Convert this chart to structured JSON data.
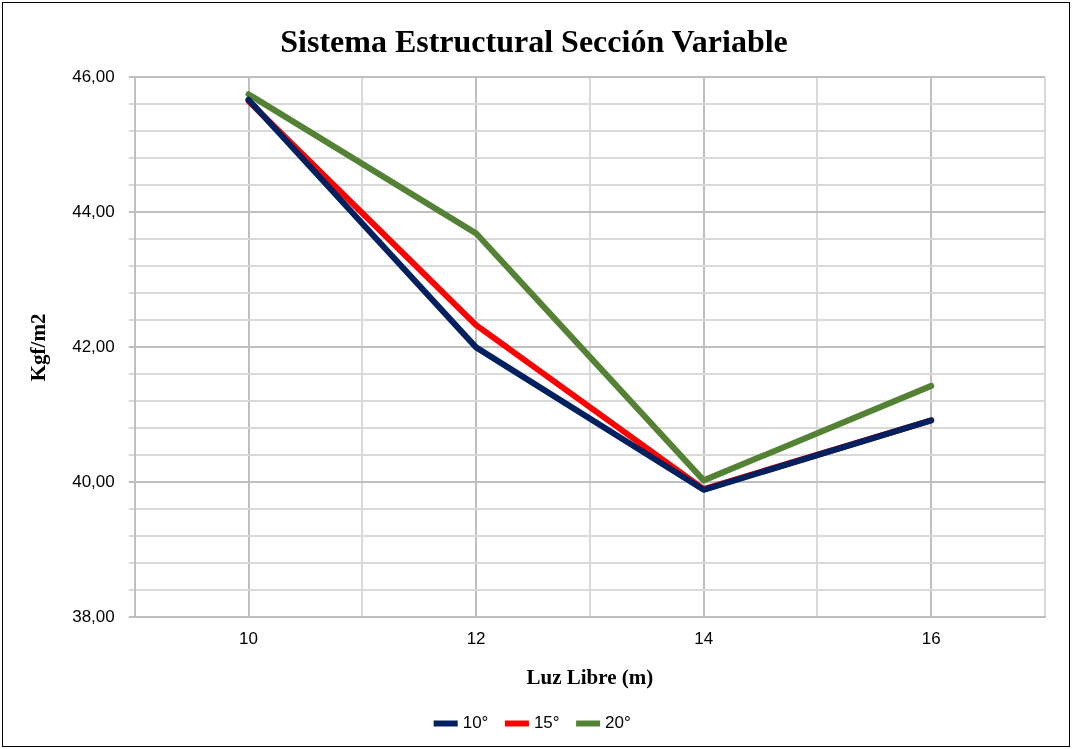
{
  "chart_data": {
    "type": "line",
    "title": "Sistema Estructural Sección Variable",
    "xlabel": "Luz Libre (m)",
    "ylabel": "Kgf/m2",
    "x": [
      10,
      12,
      14,
      16
    ],
    "series": [
      {
        "name": "10°",
        "color": "#002060",
        "values": [
          45.67,
          42.0,
          39.89,
          40.92
        ]
      },
      {
        "name": "15°",
        "color": "#ff0000",
        "values": [
          45.65,
          42.33,
          39.9,
          40.92
        ]
      },
      {
        "name": "20°",
        "color": "#548235",
        "values": [
          45.75,
          43.69,
          40.03,
          41.43
        ]
      }
    ],
    "xlim": [
      9,
      17
    ],
    "xticks": [
      {
        "value": 9,
        "label": null
      },
      10,
      {
        "value": 11,
        "label": null
      },
      12,
      {
        "value": 13,
        "label": null
      },
      14,
      {
        "value": 15,
        "label": null
      },
      16,
      {
        "value": 17,
        "label": null
      }
    ],
    "ylim": [
      38,
      46
    ],
    "yticks": [
      {
        "value": 38,
        "label": "38,00"
      },
      {
        "value": 38.4,
        "label": null
      },
      {
        "value": 38.8,
        "label": null
      },
      {
        "value": 39.2,
        "label": null
      },
      {
        "value": 39.6,
        "label": null
      },
      {
        "value": 40,
        "label": "40,00"
      },
      {
        "value": 40.4,
        "label": null
      },
      {
        "value": 40.8,
        "label": null
      },
      {
        "value": 41.2,
        "label": null
      },
      {
        "value": 41.6,
        "label": null
      },
      {
        "value": 42,
        "label": "42,00"
      },
      {
        "value": 42.4,
        "label": null
      },
      {
        "value": 42.8,
        "label": null
      },
      {
        "value": 43.2,
        "label": null
      },
      {
        "value": 43.6,
        "label": null
      },
      {
        "value": 44,
        "label": "44,00"
      },
      {
        "value": 44.4,
        "label": null
      },
      {
        "value": 44.8,
        "label": null
      },
      {
        "value": 45.2,
        "label": null
      },
      {
        "value": 45.6,
        "label": null
      },
      {
        "value": 46,
        "label": "46,00"
      }
    ],
    "grid": true,
    "legend": "bottom",
    "marker": "none",
    "line_style": "solid"
  }
}
